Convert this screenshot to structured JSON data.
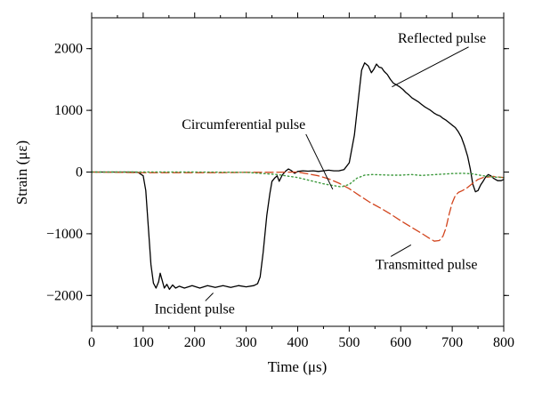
{
  "chart_data": {
    "type": "line",
    "title": "",
    "xlabel": "Time (μs)",
    "ylabel": "Strain (με)",
    "xlim": [
      0,
      800
    ],
    "ylim": [
      -2500,
      2500
    ],
    "xticks": [
      0,
      100,
      200,
      300,
      400,
      500,
      600,
      700,
      800
    ],
    "yticks": [
      -2000,
      -1000,
      0,
      1000,
      2000
    ],
    "xtick_labels": [
      "0",
      "100",
      "200",
      "300",
      "400",
      "500",
      "600",
      "700",
      "800"
    ],
    "ytick_labels": [
      "−2000",
      "−1000",
      "0",
      "1000",
      "2000"
    ],
    "grid": false,
    "legend": "none",
    "series": [
      {
        "color": "#000000",
        "style": "solid",
        "points": [
          [
            0,
            0
          ],
          [
            80,
            0
          ],
          [
            90,
            -5
          ],
          [
            100,
            -60
          ],
          [
            105,
            -300
          ],
          [
            110,
            -900
          ],
          [
            115,
            -1500
          ],
          [
            120,
            -1800
          ],
          [
            125,
            -1880
          ],
          [
            130,
            -1780
          ],
          [
            133,
            -1640
          ],
          [
            137,
            -1760
          ],
          [
            141,
            -1880
          ],
          [
            146,
            -1820
          ],
          [
            151,
            -1900
          ],
          [
            157,
            -1830
          ],
          [
            163,
            -1880
          ],
          [
            170,
            -1850
          ],
          [
            180,
            -1880
          ],
          [
            195,
            -1840
          ],
          [
            210,
            -1880
          ],
          [
            225,
            -1840
          ],
          [
            240,
            -1870
          ],
          [
            255,
            -1840
          ],
          [
            270,
            -1870
          ],
          [
            285,
            -1840
          ],
          [
            300,
            -1860
          ],
          [
            315,
            -1840
          ],
          [
            322,
            -1810
          ],
          [
            327,
            -1700
          ],
          [
            333,
            -1300
          ],
          [
            340,
            -700
          ],
          [
            346,
            -350
          ],
          [
            350,
            -150
          ],
          [
            355,
            -100
          ],
          [
            360,
            -60
          ],
          [
            364,
            -150
          ],
          [
            370,
            -50
          ],
          [
            376,
            10
          ],
          [
            382,
            50
          ],
          [
            388,
            20
          ],
          [
            394,
            -20
          ],
          [
            400,
            10
          ],
          [
            410,
            20
          ],
          [
            420,
            15
          ],
          [
            430,
            20
          ],
          [
            440,
            10
          ],
          [
            450,
            20
          ],
          [
            460,
            30
          ],
          [
            470,
            20
          ],
          [
            480,
            20
          ],
          [
            490,
            40
          ],
          [
            500,
            150
          ],
          [
            510,
            600
          ],
          [
            518,
            1200
          ],
          [
            524,
            1650
          ],
          [
            530,
            1770
          ],
          [
            537,
            1720
          ],
          [
            543,
            1610
          ],
          [
            548,
            1670
          ],
          [
            553,
            1750
          ],
          [
            558,
            1700
          ],
          [
            563,
            1690
          ],
          [
            568,
            1630
          ],
          [
            574,
            1580
          ],
          [
            580,
            1500
          ],
          [
            586,
            1440
          ],
          [
            592,
            1410
          ],
          [
            598,
            1380
          ],
          [
            604,
            1340
          ],
          [
            610,
            1290
          ],
          [
            616,
            1250
          ],
          [
            622,
            1200
          ],
          [
            628,
            1170
          ],
          [
            634,
            1140
          ],
          [
            640,
            1100
          ],
          [
            646,
            1060
          ],
          [
            652,
            1030
          ],
          [
            658,
            1000
          ],
          [
            664,
            960
          ],
          [
            670,
            930
          ],
          [
            676,
            910
          ],
          [
            682,
            870
          ],
          [
            688,
            840
          ],
          [
            694,
            800
          ],
          [
            700,
            760
          ],
          [
            706,
            720
          ],
          [
            712,
            650
          ],
          [
            718,
            560
          ],
          [
            724,
            420
          ],
          [
            730,
            250
          ],
          [
            735,
            50
          ],
          [
            740,
            -200
          ],
          [
            745,
            -320
          ],
          [
            750,
            -300
          ],
          [
            755,
            -210
          ],
          [
            760,
            -150
          ],
          [
            765,
            -80
          ],
          [
            770,
            -40
          ],
          [
            775,
            -60
          ],
          [
            780,
            -100
          ],
          [
            788,
            -140
          ],
          [
            795,
            -140
          ],
          [
            800,
            -120
          ]
        ]
      },
      {
        "color": "#D2451E",
        "style": "dashed",
        "points": [
          [
            0,
            0
          ],
          [
            50,
            -5
          ],
          [
            100,
            -10
          ],
          [
            150,
            -10
          ],
          [
            200,
            -10
          ],
          [
            250,
            -10
          ],
          [
            300,
            -5
          ],
          [
            350,
            -5
          ],
          [
            400,
            0
          ],
          [
            420,
            -30
          ],
          [
            440,
            -60
          ],
          [
            460,
            -110
          ],
          [
            480,
            -180
          ],
          [
            500,
            -270
          ],
          [
            520,
            -380
          ],
          [
            540,
            -490
          ],
          [
            560,
            -580
          ],
          [
            580,
            -680
          ],
          [
            600,
            -790
          ],
          [
            620,
            -890
          ],
          [
            640,
            -990
          ],
          [
            655,
            -1070
          ],
          [
            665,
            -1120
          ],
          [
            675,
            -1110
          ],
          [
            682,
            -1040
          ],
          [
            688,
            -900
          ],
          [
            694,
            -680
          ],
          [
            700,
            -500
          ],
          [
            706,
            -380
          ],
          [
            712,
            -330
          ],
          [
            720,
            -300
          ],
          [
            730,
            -250
          ],
          [
            740,
            -180
          ],
          [
            750,
            -120
          ],
          [
            760,
            -90
          ],
          [
            770,
            -80
          ],
          [
            780,
            -70
          ],
          [
            790,
            -80
          ],
          [
            800,
            -90
          ]
        ]
      },
      {
        "color": "#3E9A3E",
        "style": "dotted",
        "points": [
          [
            0,
            0
          ],
          [
            100,
            0
          ],
          [
            200,
            0
          ],
          [
            300,
            -5
          ],
          [
            360,
            -40
          ],
          [
            400,
            -90
          ],
          [
            430,
            -150
          ],
          [
            450,
            -190
          ],
          [
            470,
            -220
          ],
          [
            485,
            -240
          ],
          [
            500,
            -200
          ],
          [
            515,
            -100
          ],
          [
            530,
            -50
          ],
          [
            545,
            -40
          ],
          [
            560,
            -45
          ],
          [
            580,
            -50
          ],
          [
            600,
            -50
          ],
          [
            620,
            -40
          ],
          [
            640,
            -55
          ],
          [
            660,
            -45
          ],
          [
            680,
            -35
          ],
          [
            700,
            -25
          ],
          [
            720,
            -20
          ],
          [
            740,
            -30
          ],
          [
            760,
            -60
          ],
          [
            780,
            -80
          ],
          [
            800,
            -90
          ]
        ]
      }
    ],
    "annotations": [
      {
        "text": "Reflected pulse",
        "x": 680,
        "y": 2100,
        "arrow_to": [
          583,
          1380
        ]
      },
      {
        "text": "Circumferential pulse",
        "x": 295,
        "y": 700,
        "arrow_to": [
          468,
          -280
        ]
      },
      {
        "text": "Incident pulse",
        "x": 200,
        "y": -2290,
        "arrow_to": [
          236,
          -1960
        ]
      },
      {
        "text": "Transmitted pulse",
        "x": 650,
        "y": -1570,
        "arrow_to": [
          620,
          -1180
        ]
      }
    ]
  }
}
